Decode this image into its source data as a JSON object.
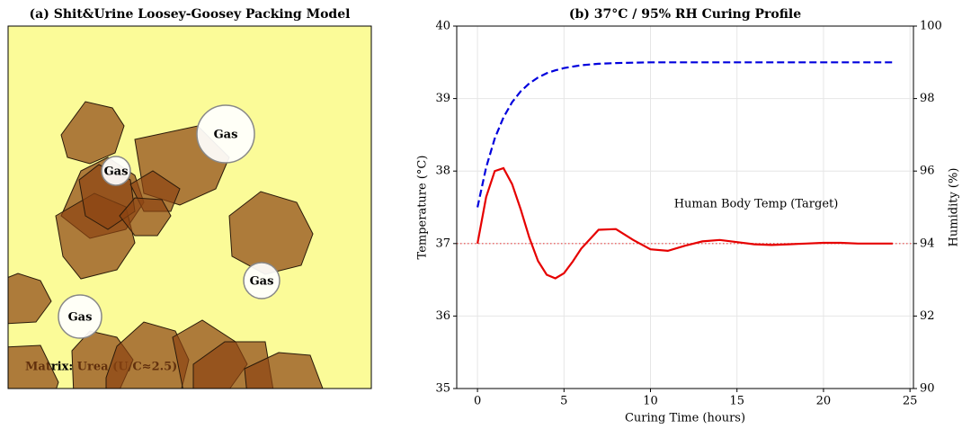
{
  "chart_data": [
    {
      "type": "diagram",
      "title": "(a) Shit&Urine Loosey-Goosey Packing Model",
      "labels": [
        "Gas",
        "Gas",
        "Gas",
        "Gas"
      ],
      "annotation": "Matrix: Urea (U/C≈2.5)",
      "background": "#fbfb98"
    },
    {
      "type": "line",
      "title": "(b) 37°C / 95% RH Curing Profile",
      "xlabel": "Curing Time (hours)",
      "ylabel": "Temperature (°C)",
      "y2label": "Humidity (%)",
      "x": [
        0,
        0.5,
        1,
        1.5,
        2,
        2.5,
        3,
        3.5,
        4,
        4.5,
        5,
        5.5,
        6,
        7,
        8,
        9,
        10,
        11,
        12,
        13,
        14,
        15,
        16,
        17,
        18,
        19,
        20,
        21,
        22,
        23,
        24
      ],
      "series": [
        {
          "color": "#e60000",
          "linestyle": "solid",
          "values": [
            37,
            37.64,
            38.0,
            38.04,
            37.82,
            37.47,
            37.08,
            36.76,
            36.57,
            36.52,
            36.59,
            36.75,
            36.93,
            37.19,
            37.2,
            37.05,
            36.92,
            36.9,
            36.97,
            37.03,
            37.05,
            37.02,
            36.99,
            36.98,
            36.99,
            37.0,
            37.01,
            37.01,
            37.0,
            37.0,
            37.0
          ]
        },
        {
          "color": "#0000dd",
          "linestyle": "dashed",
          "axis": "y2",
          "values": [
            95.0,
            96.1,
            96.9,
            97.48,
            97.9,
            98.2,
            98.42,
            98.58,
            98.7,
            98.78,
            98.84,
            98.88,
            98.92,
            98.96,
            98.98,
            98.99,
            99.0,
            99.0,
            99.0,
            99.0,
            99.0,
            99.0,
            99.0,
            99.0,
            99.0,
            99.0,
            99.0,
            99.0,
            99.0,
            99.0,
            99.0
          ]
        }
      ],
      "reference_line": {
        "value": 37,
        "color": "#e60000",
        "label": "Human Body Temp (Target)"
      },
      "xlim": [
        -1.2,
        25.2
      ],
      "xticks": [
        0,
        5,
        10,
        15,
        20,
        25
      ],
      "ylim": [
        35,
        40
      ],
      "yticks": [
        35,
        36,
        37,
        38,
        39,
        40
      ],
      "y2lim": [
        90,
        100
      ],
      "y2ticks": [
        90,
        92,
        94,
        96,
        98,
        100
      ],
      "grid": true
    }
  ]
}
